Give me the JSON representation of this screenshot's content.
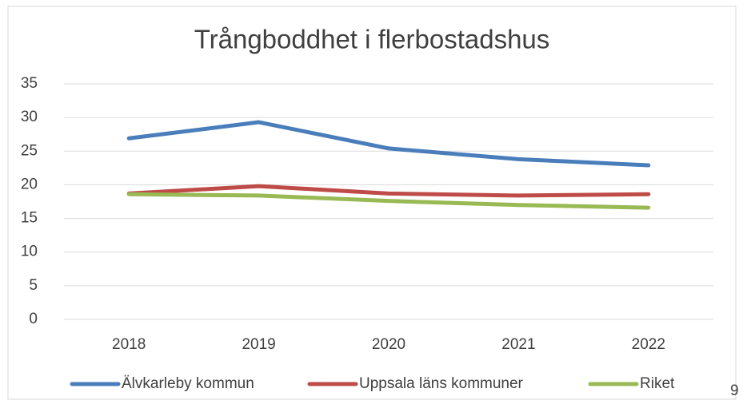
{
  "chart_data": {
    "type": "line",
    "title": "Trångboddhet i flerbostadshus",
    "categories": [
      "2018",
      "2019",
      "2020",
      "2021",
      "2022"
    ],
    "series": [
      {
        "name": "Älvkarleby kommun",
        "color": "#4a7ebb",
        "values": [
          26.9,
          29.3,
          25.4,
          23.8,
          22.9
        ]
      },
      {
        "name": "Uppsala läns kommuner",
        "color": "#be4b48",
        "values": [
          18.7,
          19.8,
          18.7,
          18.4,
          18.6
        ]
      },
      {
        "name": "Riket",
        "color": "#98b954",
        "values": [
          18.6,
          18.4,
          17.6,
          17.0,
          16.6
        ]
      }
    ],
    "ylim": [
      0,
      35
    ],
    "yticks": [
      0,
      5,
      10,
      15,
      20,
      25,
      30,
      35
    ],
    "grid": true,
    "legend": "bottom"
  },
  "page_number": "9"
}
